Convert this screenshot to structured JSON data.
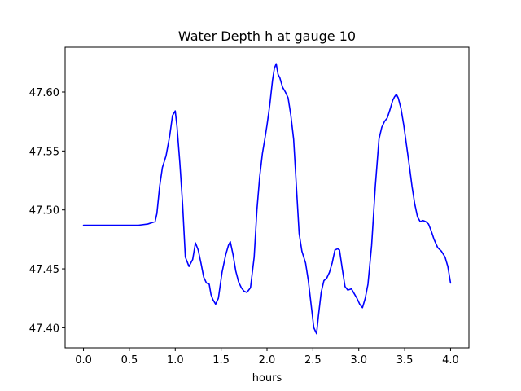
{
  "chart_data": {
    "type": "line",
    "title": "Water Depth h at gauge 10",
    "xlabel": "hours",
    "ylabel": "",
    "xlim": [
      -0.2,
      4.2
    ],
    "ylim": [
      47.383,
      47.638
    ],
    "x_ticks": [
      0.0,
      0.5,
      1.0,
      1.5,
      2.0,
      2.5,
      3.0,
      3.5,
      4.0
    ],
    "x_tick_labels": [
      "0.0",
      "0.5",
      "1.0",
      "1.5",
      "2.0",
      "2.5",
      "3.0",
      "3.5",
      "4.0"
    ],
    "y_ticks": [
      47.4,
      47.45,
      47.5,
      47.55,
      47.6
    ],
    "y_tick_labels": [
      "47.40",
      "47.45",
      "47.50",
      "47.55",
      "47.60"
    ],
    "grid": false,
    "legend": "none",
    "series": [
      {
        "color": "#0000ff",
        "x": [
          0.0,
          0.3,
          0.6,
          0.7,
          0.78,
          0.8,
          0.83,
          0.86,
          0.9,
          0.94,
          0.97,
          1.0,
          1.02,
          1.05,
          1.08,
          1.11,
          1.15,
          1.19,
          1.22,
          1.25,
          1.28,
          1.31,
          1.34,
          1.37,
          1.39,
          1.41,
          1.44,
          1.47,
          1.51,
          1.55,
          1.58,
          1.6,
          1.63,
          1.66,
          1.69,
          1.72,
          1.75,
          1.78,
          1.82,
          1.86,
          1.89,
          1.92,
          1.95,
          1.98,
          2.0,
          2.03,
          2.06,
          2.08,
          2.1,
          2.12,
          2.14,
          2.17,
          2.2,
          2.23,
          2.26,
          2.29,
          2.32,
          2.35,
          2.38,
          2.42,
          2.45,
          2.48,
          2.51,
          2.54,
          2.56,
          2.59,
          2.62,
          2.65,
          2.68,
          2.71,
          2.74,
          2.77,
          2.79,
          2.82,
          2.85,
          2.88,
          2.92,
          2.95,
          2.98,
          3.01,
          3.04,
          3.07,
          3.1,
          3.14,
          3.18,
          3.22,
          3.25,
          3.28,
          3.31,
          3.34,
          3.37,
          3.39,
          3.41,
          3.43,
          3.46,
          3.49,
          3.52,
          3.55,
          3.58,
          3.61,
          3.64,
          3.67,
          3.7,
          3.73,
          3.76,
          3.79,
          3.82,
          3.86,
          3.9,
          3.94,
          3.97,
          4.0
        ],
        "y": [
          47.487,
          47.487,
          47.487,
          47.488,
          47.49,
          47.497,
          47.52,
          47.536,
          47.546,
          47.563,
          47.58,
          47.584,
          47.57,
          47.54,
          47.505,
          47.46,
          47.452,
          47.458,
          47.472,
          47.466,
          47.455,
          47.443,
          47.438,
          47.437,
          47.428,
          47.424,
          47.42,
          47.425,
          47.447,
          47.462,
          47.47,
          47.473,
          47.462,
          47.448,
          47.439,
          47.434,
          47.431,
          47.43,
          47.434,
          47.46,
          47.5,
          47.528,
          47.548,
          47.562,
          47.572,
          47.589,
          47.61,
          47.62,
          47.624,
          47.615,
          47.612,
          47.604,
          47.6,
          47.595,
          47.58,
          47.56,
          47.52,
          47.48,
          47.465,
          47.455,
          47.44,
          47.42,
          47.4,
          47.395,
          47.41,
          47.43,
          47.44,
          47.442,
          47.447,
          47.455,
          47.466,
          47.467,
          47.466,
          47.45,
          47.435,
          47.432,
          47.433,
          47.429,
          47.425,
          47.42,
          47.417,
          47.425,
          47.437,
          47.47,
          47.52,
          47.56,
          47.57,
          47.575,
          47.578,
          47.585,
          47.593,
          47.596,
          47.598,
          47.595,
          47.586,
          47.572,
          47.555,
          47.538,
          47.52,
          47.505,
          47.494,
          47.49,
          47.491,
          47.49,
          47.488,
          47.482,
          47.475,
          47.468,
          47.465,
          47.46,
          47.452,
          47.438
        ]
      }
    ]
  }
}
